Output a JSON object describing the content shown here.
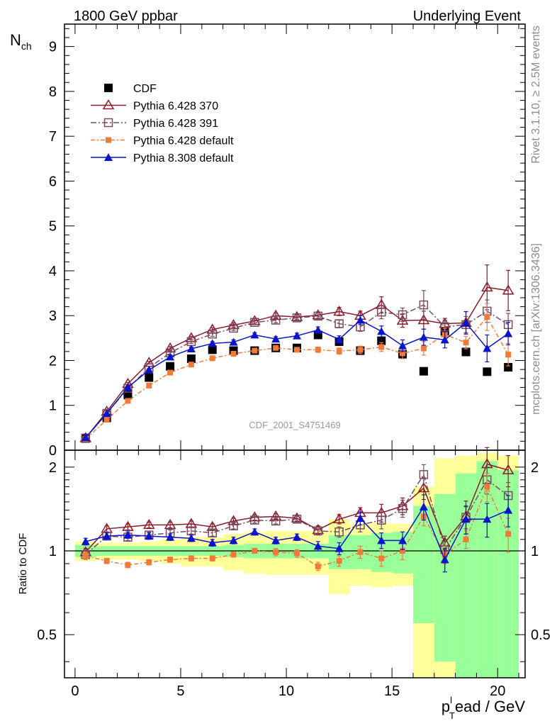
{
  "header": {
    "left_title": "1800 GeV ppbar",
    "right_title": "Underlying Event",
    "watermark": "CDF_2001_S4751469",
    "side_text_top": "Rivet 3.1.10, ≥ 2.5M events",
    "side_text_bottom": "mcplots.cern.ch [arXiv:1306.3436]"
  },
  "chart_data": [
    {
      "type": "line",
      "title": "",
      "ylabel_main": "N",
      "ylabel_sub": "ch",
      "xlabel": "",
      "xlim": [
        -0.5,
        21.3
      ],
      "ylim": [
        0,
        9.5
      ],
      "y_ticks": [
        0,
        1,
        2,
        3,
        4,
        5,
        6,
        7,
        8,
        9
      ],
      "legend_position": "top-left",
      "x": [
        0.5,
        1.5,
        2.5,
        3.5,
        4.5,
        5.5,
        6.5,
        7.5,
        8.5,
        9.5,
        10.5,
        11.5,
        12.5,
        13.5,
        14.5,
        15.5,
        16.5,
        17.5,
        18.5,
        19.5,
        20.5
      ],
      "series": [
        {
          "name": "CDF",
          "color": "#000000",
          "marker": "filled-square",
          "values": [
            0.26,
            0.72,
            1.23,
            1.62,
            1.87,
            2.04,
            2.24,
            2.22,
            2.22,
            2.28,
            2.28,
            2.57,
            2.42,
            2.22,
            2.44,
            2.14,
            1.76,
            2.65,
            2.19,
            1.75,
            1.85
          ],
          "errors": [
            0.02,
            0.03,
            0.04,
            0.05,
            0.05,
            0.05,
            0.05,
            0.05,
            0.05,
            0.05,
            0.05,
            0.06,
            0.06,
            0.06,
            0.07,
            0.07,
            0.07,
            0.08,
            0.08,
            0.09,
            0.1
          ]
        },
        {
          "name": "Pythia 6.428 370",
          "color": "#8b1a2b",
          "marker": "open-triangle",
          "dash": "",
          "values": [
            0.27,
            0.86,
            1.48,
            1.95,
            2.27,
            2.5,
            2.69,
            2.79,
            2.88,
            3.0,
            2.97,
            3.01,
            3.09,
            3.0,
            3.24,
            2.89,
            2.9,
            2.82,
            2.84,
            3.63,
            3.56
          ],
          "errors": [
            0.01,
            0.02,
            0.03,
            0.03,
            0.04,
            0.04,
            0.04,
            0.05,
            0.05,
            0.06,
            0.06,
            0.07,
            0.09,
            0.1,
            0.18,
            0.15,
            0.2,
            0.12,
            0.25,
            0.5,
            0.45
          ]
        },
        {
          "name": "Pythia 6.428 391",
          "color": "#7a4a5e",
          "marker": "open-square",
          "dash": "8,3,2,3",
          "values": [
            0.27,
            0.82,
            1.38,
            1.84,
            2.17,
            2.42,
            2.59,
            2.72,
            2.85,
            2.9,
            2.95,
            2.99,
            2.82,
            2.75,
            3.08,
            3.02,
            3.24,
            2.75,
            2.8,
            3.1,
            2.8
          ],
          "errors": [
            0.01,
            0.02,
            0.03,
            0.03,
            0.04,
            0.04,
            0.05,
            0.05,
            0.05,
            0.06,
            0.06,
            0.07,
            0.08,
            0.1,
            0.15,
            0.15,
            0.32,
            0.15,
            0.18,
            0.25,
            0.25
          ]
        },
        {
          "name": "Pythia 6.428 default",
          "color": "#f07a3a",
          "marker": "filled-small-square",
          "dash": "6,3,2,3",
          "values": [
            0.25,
            0.68,
            1.1,
            1.44,
            1.73,
            1.91,
            2.05,
            2.15,
            2.22,
            2.28,
            2.24,
            2.24,
            2.21,
            2.24,
            2.3,
            2.16,
            2.27,
            2.58,
            2.4,
            2.97,
            2.13
          ],
          "errors": [
            0.01,
            0.02,
            0.02,
            0.03,
            0.03,
            0.03,
            0.04,
            0.04,
            0.04,
            0.05,
            0.05,
            0.06,
            0.07,
            0.08,
            0.1,
            0.12,
            0.15,
            0.14,
            0.14,
            0.3,
            0.25
          ]
        },
        {
          "name": "Pythia 8.308 default",
          "color": "#0a14c8",
          "marker": "filled-triangle",
          "dash": "",
          "values": [
            0.28,
            0.82,
            1.4,
            1.79,
            2.08,
            2.26,
            2.38,
            2.41,
            2.57,
            2.48,
            2.55,
            2.68,
            2.47,
            2.9,
            2.65,
            2.33,
            2.52,
            2.46,
            2.84,
            2.27,
            2.6
          ],
          "errors": [
            0.01,
            0.02,
            0.03,
            0.03,
            0.04,
            0.04,
            0.04,
            0.05,
            0.05,
            0.05,
            0.06,
            0.07,
            0.08,
            0.1,
            0.12,
            0.13,
            0.18,
            0.18,
            0.25,
            0.3,
            0.25
          ]
        }
      ]
    },
    {
      "type": "line",
      "title": "",
      "ylabel": "Ratio to CDF",
      "xlabel_main": "p",
      "xlabel_sub": "T",
      "xlabel_sup": "l",
      "xlabel_rest": "ead / GeV",
      "xlim": [
        -0.5,
        21.3
      ],
      "ylim": [
        0.35,
        2.3
      ],
      "y_scale": "log",
      "y_tick_labels": [
        "0.5",
        "1",
        "2"
      ],
      "y_ticks": [
        0.5,
        1,
        2
      ],
      "x_tick_labels": [
        "0",
        "5",
        "10",
        "15",
        "20"
      ],
      "x_ticks": [
        0,
        5,
        10,
        15,
        20
      ],
      "reference_line": 1,
      "x": [
        0.5,
        1.5,
        2.5,
        3.5,
        4.5,
        5.5,
        6.5,
        7.5,
        8.5,
        9.5,
        10.5,
        11.5,
        12.5,
        13.5,
        14.5,
        15.5,
        16.5,
        17.5,
        18.5,
        19.5,
        20.5
      ],
      "bands": {
        "green_half_width": [
          0.05,
          0.04,
          0.04,
          0.04,
          0.04,
          0.04,
          0.04,
          0.05,
          0.06,
          0.06,
          0.06,
          0.06,
          0.14,
          0.14,
          0.16,
          0.17,
          0.45,
          0.6,
          0.9,
          1.1,
          0.95
        ],
        "yellow_half_width": [
          0.08,
          0.07,
          0.07,
          0.08,
          0.1,
          0.12,
          0.12,
          0.15,
          0.17,
          0.18,
          0.18,
          0.18,
          0.3,
          0.25,
          0.26,
          0.25,
          0.7,
          1.15,
          1.2,
          1.25,
          1.2
        ]
      },
      "series": [
        {
          "name": "Pythia 6.428 370",
          "color": "#8b1a2b",
          "marker": "open-triangle",
          "dash": "",
          "values": [
            0.99,
            1.2,
            1.22,
            1.24,
            1.24,
            1.25,
            1.22,
            1.28,
            1.32,
            1.33,
            1.31,
            1.19,
            1.3,
            1.37,
            1.37,
            1.45,
            1.68,
            1.07,
            1.33,
            2.05,
            1.95
          ],
          "errors": [
            0.03,
            0.03,
            0.03,
            0.03,
            0.03,
            0.03,
            0.03,
            0.03,
            0.03,
            0.03,
            0.03,
            0.04,
            0.05,
            0.06,
            0.1,
            0.1,
            0.15,
            0.06,
            0.18,
            0.3,
            0.25
          ]
        },
        {
          "name": "Pythia 6.428 391",
          "color": "#7a4a5e",
          "marker": "open-square",
          "dash": "8,3,2,3",
          "values": [
            0.97,
            1.13,
            1.12,
            1.14,
            1.16,
            1.18,
            1.16,
            1.23,
            1.29,
            1.28,
            1.3,
            1.18,
            1.17,
            1.24,
            1.29,
            1.42,
            1.88,
            1.01,
            1.32,
            1.8,
            1.58
          ],
          "errors": [
            0.03,
            0.03,
            0.03,
            0.03,
            0.03,
            0.03,
            0.03,
            0.03,
            0.03,
            0.03,
            0.03,
            0.04,
            0.05,
            0.07,
            0.09,
            0.1,
            0.16,
            0.07,
            0.12,
            0.2,
            0.18
          ]
        },
        {
          "name": "Pythia 6.428 default",
          "color": "#f07a3a",
          "marker": "filled-small-square",
          "dash": "6,3,2,3",
          "values": [
            0.96,
            0.92,
            0.89,
            0.91,
            0.93,
            0.94,
            0.94,
            0.97,
            1.0,
            0.99,
            0.98,
            0.88,
            0.92,
            0.99,
            0.94,
            1.0,
            1.33,
            0.97,
            1.1,
            1.7,
            1.15
          ],
          "errors": [
            0.03,
            0.02,
            0.02,
            0.02,
            0.02,
            0.02,
            0.02,
            0.02,
            0.02,
            0.03,
            0.03,
            0.03,
            0.04,
            0.05,
            0.06,
            0.07,
            0.1,
            0.07,
            0.08,
            0.2,
            0.16
          ]
        },
        {
          "name": "Pythia 8.308 default",
          "color": "#0a14c8",
          "marker": "filled-triangle",
          "dash": "",
          "values": [
            1.08,
            1.13,
            1.14,
            1.13,
            1.12,
            1.11,
            1.07,
            1.09,
            1.17,
            1.09,
            1.12,
            1.04,
            1.02,
            1.31,
            1.09,
            1.09,
            1.44,
            0.93,
            1.3,
            1.3,
            1.4
          ],
          "errors": [
            0.03,
            0.03,
            0.03,
            0.03,
            0.03,
            0.03,
            0.03,
            0.03,
            0.03,
            0.03,
            0.03,
            0.04,
            0.05,
            0.07,
            0.07,
            0.08,
            0.15,
            0.09,
            0.15,
            0.18,
            0.18
          ]
        }
      ]
    }
  ]
}
